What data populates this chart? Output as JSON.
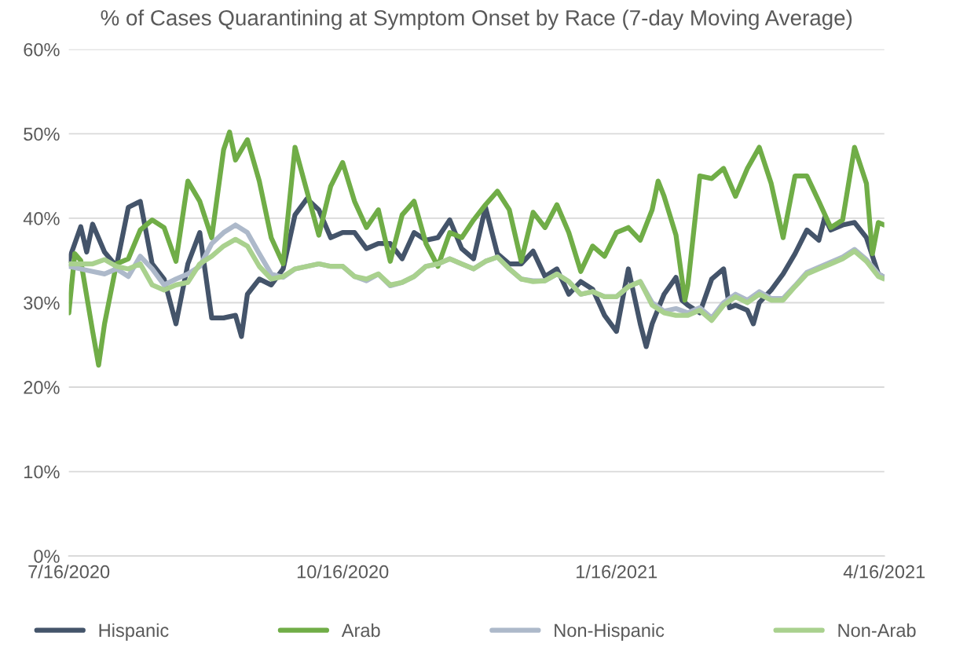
{
  "chart_data": {
    "type": "line",
    "title": "% of Cases Quarantining at Symptom Onset by Race (7-day Moving Average)",
    "xlim": [
      "2020-07-16",
      "2021-04-16"
    ],
    "xticks": [
      {
        "value": "2020-07-16",
        "label": "7/16/2020"
      },
      {
        "value": "2020-10-16",
        "label": "10/16/2020"
      },
      {
        "value": "2021-01-16",
        "label": "1/16/2021"
      },
      {
        "value": "2021-04-16",
        "label": "4/16/2021"
      }
    ],
    "ylim": [
      0,
      60
    ],
    "yticks": [
      {
        "value": 0,
        "label": "0%"
      },
      {
        "value": 10,
        "label": "10%"
      },
      {
        "value": 20,
        "label": "20%"
      },
      {
        "value": 30,
        "label": "30%"
      },
      {
        "value": 40,
        "label": "40%"
      },
      {
        "value": 50,
        "label": "50%"
      },
      {
        "value": 60,
        "label": "60%"
      }
    ],
    "grid": "y",
    "legend": "bottom",
    "marker": "none",
    "line_style": "solid",
    "series": [
      {
        "name": "Hispanic",
        "color": "#44546a",
        "x": [
          "2020-07-16",
          "2020-07-20",
          "2020-07-22",
          "2020-07-24",
          "2020-07-28",
          "2020-08-01",
          "2020-08-05",
          "2020-08-09",
          "2020-08-13",
          "2020-08-17",
          "2020-08-21",
          "2020-08-25",
          "2020-08-29",
          "2020-09-02",
          "2020-09-06",
          "2020-09-10",
          "2020-09-12",
          "2020-09-14",
          "2020-09-18",
          "2020-09-22",
          "2020-09-26",
          "2020-09-30",
          "2020-10-04",
          "2020-10-08",
          "2020-10-12",
          "2020-10-16",
          "2020-10-20",
          "2020-10-24",
          "2020-10-28",
          "2020-11-01",
          "2020-11-05",
          "2020-11-09",
          "2020-11-13",
          "2020-11-17",
          "2020-11-21",
          "2020-11-25",
          "2020-11-29",
          "2020-12-03",
          "2020-12-07",
          "2020-12-11",
          "2020-12-15",
          "2020-12-19",
          "2020-12-23",
          "2020-12-27",
          "2020-12-31",
          "2021-01-04",
          "2021-01-08",
          "2021-01-12",
          "2021-01-16",
          "2021-01-20",
          "2021-01-24",
          "2021-01-26",
          "2021-01-28",
          "2021-02-01",
          "2021-02-05",
          "2021-02-07",
          "2021-02-09",
          "2021-02-13",
          "2021-02-17",
          "2021-02-21",
          "2021-02-23",
          "2021-02-25",
          "2021-03-01",
          "2021-03-03",
          "2021-03-05",
          "2021-03-09",
          "2021-03-13",
          "2021-03-17",
          "2021-03-21",
          "2021-03-25",
          "2021-03-27",
          "2021-03-29",
          "2021-04-02",
          "2021-04-06",
          "2021-04-10",
          "2021-04-14",
          "2021-04-16"
        ],
        "values": [
          35,
          39,
          36,
          39.3,
          36,
          34.3,
          41.3,
          42,
          34.6,
          32.8,
          27.5,
          34.6,
          38.3,
          28.2,
          28.2,
          28.5,
          26,
          31,
          32.8,
          32.1,
          34,
          40.4,
          42.3,
          41,
          37.7,
          38.3,
          38.3,
          36.4,
          37,
          37,
          35.2,
          38.3,
          37.4,
          37.7,
          39.8,
          36.4,
          35.2,
          41.3,
          35.8,
          34.6,
          34.6,
          36.1,
          33.1,
          34,
          31,
          32.5,
          31.6,
          28.5,
          26.6,
          34,
          27.5,
          24.8,
          27.5,
          31,
          33,
          30.3,
          29.7,
          28.8,
          32.8,
          34,
          29.4,
          29.7,
          29.1,
          27.5,
          30,
          31.5,
          33.4,
          35.8,
          38.6,
          37.4,
          40.1,
          38.6,
          39.2,
          39.5,
          37.7,
          33.4,
          33
        ]
      },
      {
        "name": "Arab",
        "color": "#70ad47",
        "x": [
          "2020-07-16",
          "2020-07-18",
          "2020-07-20",
          "2020-07-24",
          "2020-07-26",
          "2020-07-28",
          "2020-08-01",
          "2020-08-05",
          "2020-08-09",
          "2020-08-13",
          "2020-08-17",
          "2020-08-21",
          "2020-08-25",
          "2020-08-29",
          "2020-09-02",
          "2020-09-06",
          "2020-09-08",
          "2020-09-10",
          "2020-09-14",
          "2020-09-18",
          "2020-09-22",
          "2020-09-26",
          "2020-09-30",
          "2020-10-04",
          "2020-10-08",
          "2020-10-12",
          "2020-10-16",
          "2020-10-20",
          "2020-10-24",
          "2020-10-28",
          "2020-11-01",
          "2020-11-05",
          "2020-11-09",
          "2020-11-13",
          "2020-11-17",
          "2020-11-21",
          "2020-11-25",
          "2020-11-29",
          "2020-12-03",
          "2020-12-07",
          "2020-12-11",
          "2020-12-15",
          "2020-12-19",
          "2020-12-23",
          "2020-12-27",
          "2020-12-31",
          "2021-01-04",
          "2021-01-08",
          "2021-01-12",
          "2021-01-16",
          "2021-01-20",
          "2021-01-24",
          "2021-01-28",
          "2021-01-30",
          "2021-02-01",
          "2021-02-05",
          "2021-02-08",
          "2021-02-09",
          "2021-02-13",
          "2021-02-17",
          "2021-02-21",
          "2021-02-25",
          "2021-03-01",
          "2021-03-05",
          "2021-03-09",
          "2021-03-13",
          "2021-03-17",
          "2021-03-21",
          "2021-03-25",
          "2021-03-29",
          "2021-04-02",
          "2021-04-06",
          "2021-04-10",
          "2021-04-12",
          "2021-04-14",
          "2021-04-16"
        ],
        "values": [
          28.8,
          35.8,
          35,
          26.6,
          22.6,
          27.5,
          34.6,
          35.2,
          38.6,
          39.8,
          38.9,
          34.9,
          44.4,
          42,
          37.7,
          48.1,
          50.2,
          46.9,
          49.3,
          44.4,
          37.7,
          34.6,
          48.4,
          43.2,
          38,
          43.8,
          46.6,
          42,
          38.9,
          41,
          34.9,
          40.4,
          42,
          37,
          34.3,
          38.3,
          37.7,
          39.8,
          41.6,
          43.2,
          41,
          34.9,
          40.7,
          38.9,
          41.6,
          38.3,
          33.7,
          36.7,
          35.5,
          38.3,
          38.9,
          37.4,
          41,
          44.4,
          42.6,
          38,
          30.3,
          32.1,
          45,
          44.7,
          45.9,
          42.6,
          45.9,
          48.4,
          44.1,
          37.7,
          45,
          45,
          42,
          38.9,
          39.8,
          48.4,
          44.1,
          35.8,
          39.5,
          39.2
        ]
      },
      {
        "name": "Non-Hispanic",
        "color": "#adb9ca",
        "x": [
          "2020-07-16",
          "2020-07-20",
          "2020-07-24",
          "2020-07-28",
          "2020-08-01",
          "2020-08-05",
          "2020-08-09",
          "2020-08-13",
          "2020-08-17",
          "2020-08-21",
          "2020-08-25",
          "2020-08-29",
          "2020-09-02",
          "2020-09-06",
          "2020-09-10",
          "2020-09-14",
          "2020-09-18",
          "2020-09-22",
          "2020-09-26",
          "2020-09-30",
          "2020-10-04",
          "2020-10-08",
          "2020-10-12",
          "2020-10-16",
          "2020-10-20",
          "2020-10-24",
          "2020-10-28",
          "2020-11-01",
          "2020-11-05",
          "2020-11-09",
          "2020-11-13",
          "2020-11-17",
          "2020-11-21",
          "2020-11-25",
          "2020-11-29",
          "2020-12-03",
          "2020-12-07",
          "2020-12-11",
          "2020-12-15",
          "2020-12-19",
          "2020-12-23",
          "2020-12-27",
          "2020-12-31",
          "2021-01-04",
          "2021-01-08",
          "2021-01-12",
          "2021-01-16",
          "2021-01-20",
          "2021-01-24",
          "2021-01-28",
          "2021-02-01",
          "2021-02-05",
          "2021-02-09",
          "2021-02-13",
          "2021-02-17",
          "2021-02-21",
          "2021-02-25",
          "2021-03-01",
          "2021-03-05",
          "2021-03-09",
          "2021-03-13",
          "2021-03-17",
          "2021-03-21",
          "2021-03-25",
          "2021-03-29",
          "2021-04-02",
          "2021-04-06",
          "2021-04-10",
          "2021-04-14",
          "2021-04-16"
        ],
        "values": [
          34.3,
          34,
          33.7,
          33.4,
          34,
          33.1,
          35.5,
          34,
          32.1,
          32.8,
          33.4,
          34.3,
          37,
          38.3,
          39.2,
          38.3,
          35.8,
          33.4,
          33,
          34,
          34.3,
          34.6,
          34.3,
          34.3,
          33.1,
          32.6,
          33.4,
          32,
          32.4,
          33.1,
          34.3,
          34.6,
          35.2,
          34.6,
          34,
          34.9,
          35.4,
          34,
          32.8,
          32.6,
          32.6,
          33.4,
          32.5,
          31,
          31.3,
          30.7,
          30.7,
          31.9,
          32.5,
          30,
          29,
          29.3,
          28.8,
          29.4,
          28.2,
          30,
          31,
          30.3,
          31.3,
          30.5,
          30.5,
          32,
          33.6,
          34.2,
          34.8,
          35.4,
          36.3,
          35.1,
          33.4,
          33
        ]
      },
      {
        "name": "Non-Arab",
        "color": "#a9d18e",
        "x": [
          "2020-07-16",
          "2020-07-20",
          "2020-07-24",
          "2020-07-28",
          "2020-08-01",
          "2020-08-05",
          "2020-08-09",
          "2020-08-13",
          "2020-08-17",
          "2020-08-21",
          "2020-08-25",
          "2020-08-29",
          "2020-09-02",
          "2020-09-06",
          "2020-09-10",
          "2020-09-14",
          "2020-09-18",
          "2020-09-22",
          "2020-09-26",
          "2020-09-30",
          "2020-10-04",
          "2020-10-08",
          "2020-10-12",
          "2020-10-16",
          "2020-10-20",
          "2020-10-24",
          "2020-10-28",
          "2020-11-01",
          "2020-11-05",
          "2020-11-09",
          "2020-11-13",
          "2020-11-17",
          "2020-11-21",
          "2020-11-25",
          "2020-11-29",
          "2020-12-03",
          "2020-12-07",
          "2020-12-11",
          "2020-12-15",
          "2020-12-19",
          "2020-12-23",
          "2020-12-27",
          "2020-12-31",
          "2021-01-04",
          "2021-01-08",
          "2021-01-12",
          "2021-01-16",
          "2021-01-20",
          "2021-01-24",
          "2021-01-28",
          "2021-02-01",
          "2021-02-05",
          "2021-02-09",
          "2021-02-13",
          "2021-02-17",
          "2021-02-21",
          "2021-02-25",
          "2021-03-01",
          "2021-03-05",
          "2021-03-09",
          "2021-03-13",
          "2021-03-17",
          "2021-03-21",
          "2021-03-25",
          "2021-03-29",
          "2021-04-02",
          "2021-04-06",
          "2021-04-10",
          "2021-04-14",
          "2021-04-16"
        ],
        "values": [
          34.6,
          34.6,
          34.6,
          35.1,
          34.3,
          34,
          34.6,
          32.1,
          31.5,
          32.1,
          32.4,
          34.6,
          35.5,
          36.7,
          37.5,
          36.7,
          34.3,
          32.8,
          33.1,
          34,
          34.3,
          34.6,
          34.3,
          34.3,
          33.1,
          32.8,
          33.4,
          32.1,
          32.4,
          33.1,
          34.3,
          34.6,
          35.2,
          34.6,
          34,
          34.9,
          35.4,
          34,
          32.8,
          32.5,
          32.6,
          33.4,
          32.5,
          31,
          31.3,
          30.7,
          30.7,
          31.9,
          32.5,
          29.7,
          28.8,
          28.5,
          28.5,
          29.1,
          27.9,
          29.7,
          30.7,
          30,
          31,
          30.3,
          30.3,
          31.9,
          33.4,
          34,
          34.6,
          35.2,
          36.1,
          34.9,
          33.1,
          32.8
        ]
      }
    ]
  }
}
